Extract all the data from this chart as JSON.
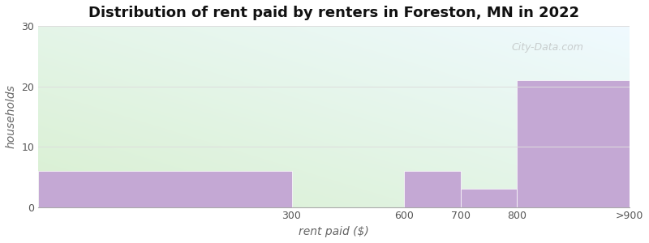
{
  "title": "Distribution of rent paid by renters in Foreston, MN in 2022",
  "xlabel": "rent paid ($)",
  "ylabel": "households",
  "ylim": [
    0,
    30
  ],
  "yticks": [
    0,
    10,
    20,
    30
  ],
  "bar_color": "#c4a8d4",
  "bar_edgecolor": "#c4a8d4",
  "title_fontsize": 13,
  "axis_label_fontsize": 10,
  "tick_fontsize": 9,
  "tick_color": "#555555",
  "grid_color": "#dddddd",
  "watermark": "City-Data.com",
  "bin_edges": [
    0,
    450,
    650,
    750,
    850,
    1050
  ],
  "xtick_positions": [
    450,
    650,
    750,
    850,
    1050
  ],
  "xtick_labels": [
    "300",
    "600",
    "700",
    "800",
    ">900"
  ],
  "values": [
    6,
    0,
    6,
    3,
    21
  ],
  "bg_gradient_colors": [
    "#d8f0d0",
    "#f0f8ff"
  ],
  "fig_bg": "#ffffff"
}
